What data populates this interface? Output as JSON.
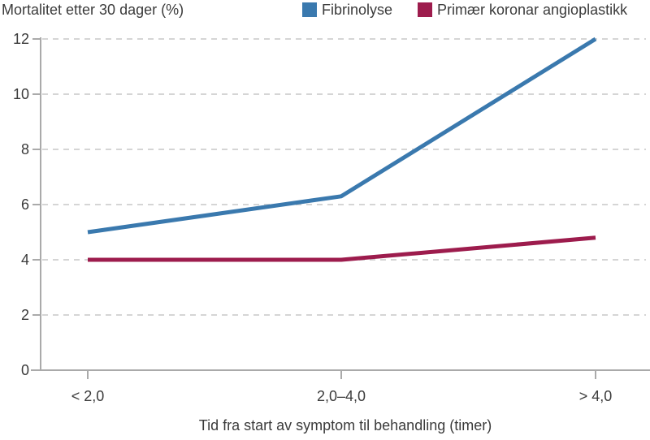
{
  "chart_data": {
    "type": "line",
    "title": "Mortalitet etter 30 dager (%)",
    "xlabel": "Tid fra start av symptom til behandling (timer)",
    "ylabel": "",
    "categories": [
      "< 2,0",
      "2,0–4,0",
      "> 4,0"
    ],
    "series": [
      {
        "name": "Fibrinolyse",
        "color": "#3a79ae",
        "values": [
          5.0,
          6.3,
          12.0
        ]
      },
      {
        "name": "Primær koronar angioplastikk",
        "color": "#9d1c4d",
        "values": [
          4.0,
          4.0,
          4.8
        ]
      }
    ],
    "ylim": [
      0,
      12
    ],
    "yticks": [
      0,
      2,
      4,
      6,
      8,
      10,
      12
    ],
    "grid": true,
    "grid_style": "dashed",
    "legend_position": "top-right"
  },
  "colors": {
    "text": "#3b3b3b",
    "axis": "#aaaaaa",
    "grid": "#d5d5d5",
    "background": "#ffffff"
  }
}
